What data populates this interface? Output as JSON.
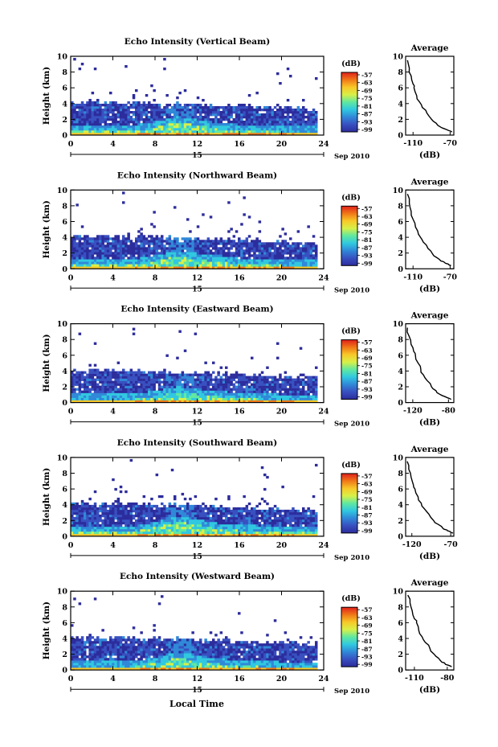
{
  "figure": {
    "xlabel": "Local Time",
    "date_label": "Sep 2010",
    "day_label": "15"
  },
  "colorbar": {
    "unit_label": "(dB)",
    "ticks": [
      "-57",
      "-63",
      "-69",
      "-75",
      "-81",
      "-87",
      "-93",
      "-99"
    ],
    "colors": [
      "#e0201c",
      "#f07818",
      "#f8c828",
      "#d8f048",
      "#60e8a0",
      "#30c8e0",
      "#3088d8",
      "#3850c0",
      "#2c2c9c"
    ]
  },
  "chart_data": [
    {
      "type": "heatmap",
      "title": "Echo Intensity (Vertical Beam)",
      "ylabel": "Height (km)",
      "xlim": [
        0,
        24
      ],
      "ylim": [
        0,
        10
      ],
      "xticks": [
        0,
        4,
        8,
        12,
        16,
        20,
        24
      ],
      "yticks": [
        0,
        2,
        4,
        6,
        8,
        10
      ],
      "color_unit": "dB",
      "color_range": [
        -99,
        -57
      ],
      "layer_top_km": {
        "time_h": [
          0,
          4,
          8,
          12,
          16,
          20,
          23.5
        ],
        "height_km": [
          4.3,
          4.3,
          4.2,
          4.0,
          3.8,
          3.6,
          3.5
        ]
      },
      "strong_layer": {
        "time_h": [
          6,
          8,
          10,
          12,
          14,
          16,
          18,
          20
        ],
        "height_km": [
          0.7,
          1.2,
          1.8,
          1.4,
          1.0,
          0.8,
          0.7,
          0.6
        ]
      }
    },
    {
      "type": "heatmap",
      "title": "Echo Intensity (Northward Beam)",
      "ylabel": "Height (km)",
      "xlim": [
        0,
        24
      ],
      "ylim": [
        0,
        10
      ],
      "xticks": [
        0,
        4,
        8,
        12,
        16,
        20,
        24
      ],
      "yticks": [
        0,
        2,
        4,
        6,
        8,
        10
      ],
      "color_unit": "dB",
      "color_range": [
        -99,
        -57
      ],
      "layer_top_km": {
        "time_h": [
          0,
          4,
          8,
          12,
          16,
          20,
          23.5
        ],
        "height_km": [
          4.4,
          4.3,
          4.2,
          4.0,
          3.8,
          3.6,
          3.4
        ]
      },
      "strong_layer": {
        "time_h": [
          6,
          8,
          10,
          12,
          14,
          16,
          18,
          20
        ],
        "height_km": [
          0.7,
          1.2,
          1.8,
          1.4,
          1.0,
          0.8,
          0.7,
          0.6
        ]
      }
    },
    {
      "type": "heatmap",
      "title": "Echo Intensity (Eastward Beam)",
      "ylabel": "Height (km)",
      "xlim": [
        0,
        24
      ],
      "ylim": [
        0,
        10
      ],
      "xticks": [
        0,
        4,
        8,
        12,
        16,
        20,
        24
      ],
      "yticks": [
        0,
        2,
        4,
        6,
        8,
        10
      ],
      "color_unit": "dB",
      "color_range": [
        -99,
        -57
      ],
      "layer_top_km": {
        "time_h": [
          0,
          4,
          8,
          12,
          16,
          20,
          23.5
        ],
        "height_km": [
          4.3,
          4.2,
          4.1,
          3.9,
          3.7,
          3.5,
          3.5
        ]
      },
      "strong_layer": {
        "time_h": [
          6,
          8,
          10,
          12,
          14,
          16,
          18,
          20
        ],
        "height_km": [
          0.6,
          1.0,
          1.5,
          1.2,
          0.9,
          0.7,
          0.6,
          0.5
        ]
      }
    },
    {
      "type": "heatmap",
      "title": "Echo Intensity (Southward Beam)",
      "ylabel": "Height (km)",
      "xlim": [
        0,
        24
      ],
      "ylim": [
        0,
        10
      ],
      "xticks": [
        0,
        4,
        8,
        12,
        16,
        20,
        24
      ],
      "yticks": [
        0,
        2,
        4,
        6,
        8,
        10
      ],
      "color_unit": "dB",
      "color_range": [
        -99,
        -57
      ],
      "layer_top_km": {
        "time_h": [
          0,
          4,
          8,
          12,
          16,
          20,
          23.5
        ],
        "height_km": [
          4.3,
          4.3,
          4.2,
          4.0,
          3.8,
          3.6,
          3.5
        ]
      },
      "strong_layer": {
        "time_h": [
          6,
          8,
          10,
          12,
          14,
          16,
          18,
          20
        ],
        "height_km": [
          0.8,
          1.3,
          2.0,
          1.6,
          1.1,
          0.9,
          0.8,
          0.7
        ]
      }
    },
    {
      "type": "heatmap",
      "title": "Echo Intensity (Westward Beam)",
      "ylabel": "Height (km)",
      "xlim": [
        0,
        24
      ],
      "ylim": [
        0,
        10
      ],
      "xticks": [
        0,
        4,
        8,
        12,
        16,
        20,
        24
      ],
      "yticks": [
        0,
        2,
        4,
        6,
        8,
        10
      ],
      "color_unit": "dB",
      "color_range": [
        -99,
        -57
      ],
      "layer_top_km": {
        "time_h": [
          0,
          4,
          8,
          12,
          16,
          20,
          23.5
        ],
        "height_km": [
          4.3,
          4.3,
          4.2,
          4.0,
          3.8,
          3.6,
          3.5
        ]
      },
      "strong_layer": {
        "time_h": [
          6,
          8,
          10,
          12,
          14,
          16,
          18,
          20
        ],
        "height_km": [
          0.6,
          1.1,
          1.7,
          1.3,
          0.9,
          0.7,
          0.6,
          0.5
        ]
      }
    },
    {
      "type": "line",
      "title": "Average",
      "xlabel": "(dB)",
      "ylabel": "",
      "xlim": [
        -118,
        -66
      ],
      "ylim": [
        0,
        10
      ],
      "xticks": [
        -110,
        -70
      ],
      "yticks": [
        0,
        2,
        4,
        6,
        8,
        10
      ],
      "series": [
        {
          "x": [
            -116,
            -114,
            -112,
            -110,
            -109,
            -106,
            -103,
            -100,
            -95,
            -90,
            -85,
            -80,
            -76,
            -72,
            -68
          ],
          "y": [
            9.5,
            8.5,
            7.5,
            6.5,
            6.0,
            5.0,
            4.2,
            3.5,
            2.8,
            2.0,
            1.5,
            1.0,
            0.8,
            0.6,
            0.4
          ]
        }
      ]
    },
    {
      "type": "line",
      "title": "Average",
      "xlabel": "(dB)",
      "ylabel": "",
      "xlim": [
        -118,
        -66
      ],
      "ylim": [
        0,
        10
      ],
      "xticks": [
        -110,
        -70
      ],
      "yticks": [
        0,
        2,
        4,
        6,
        8,
        10
      ],
      "series": [
        {
          "x": [
            -116,
            -114,
            -112,
            -110,
            -108,
            -105,
            -102,
            -99,
            -94,
            -89,
            -84,
            -80,
            -76,
            -72,
            -69
          ],
          "y": [
            9.5,
            8.3,
            7.3,
            6.3,
            5.8,
            4.8,
            4.0,
            3.4,
            2.6,
            1.9,
            1.4,
            1.0,
            0.8,
            0.6,
            0.4
          ]
        }
      ]
    },
    {
      "type": "line",
      "title": "Average",
      "xlabel": "(dB)",
      "ylabel": "",
      "xlim": [
        -128,
        -74
      ],
      "ylim": [
        0,
        10
      ],
      "xticks": [
        -120,
        -80
      ],
      "yticks": [
        0,
        2,
        4,
        6,
        8,
        10
      ],
      "series": [
        {
          "x": [
            -126,
            -124,
            -122,
            -119,
            -117,
            -114,
            -111,
            -108,
            -104,
            -99,
            -94,
            -89,
            -85,
            -81,
            -77
          ],
          "y": [
            9.5,
            8.4,
            7.4,
            6.5,
            6.0,
            5.0,
            4.2,
            3.5,
            2.8,
            2.0,
            1.5,
            1.0,
            0.8,
            0.6,
            0.4
          ]
        }
      ]
    },
    {
      "type": "line",
      "title": "Average",
      "xlabel": "(dB)",
      "ylabel": "",
      "xlim": [
        -128,
        -66
      ],
      "ylim": [
        0,
        10
      ],
      "xticks": [
        -120,
        -70
      ],
      "yticks": [
        0,
        2,
        4,
        6,
        8,
        10
      ],
      "series": [
        {
          "x": [
            -126,
            -124,
            -121,
            -118,
            -116,
            -112,
            -108,
            -104,
            -98,
            -92,
            -86,
            -80,
            -75,
            -71,
            -67
          ],
          "y": [
            9.5,
            8.5,
            7.5,
            6.5,
            6.0,
            5.0,
            4.2,
            3.5,
            2.8,
            2.0,
            1.5,
            1.0,
            0.8,
            0.6,
            0.4
          ]
        }
      ]
    },
    {
      "type": "line",
      "title": "Average",
      "xlabel": "(dB)",
      "ylabel": "",
      "xlim": [
        -118,
        -74
      ],
      "ylim": [
        0,
        10
      ],
      "xticks": [
        -110,
        -80
      ],
      "yticks": [
        0,
        2,
        4,
        6,
        8,
        10
      ],
      "series": [
        {
          "x": [
            -116,
            -114,
            -112,
            -110,
            -108,
            -106,
            -103,
            -100,
            -96,
            -92,
            -88,
            -85,
            -82,
            -79,
            -76
          ],
          "y": [
            9.5,
            8.5,
            7.5,
            6.5,
            6.0,
            5.0,
            4.2,
            3.5,
            2.8,
            2.0,
            1.5,
            1.0,
            0.8,
            0.6,
            0.4
          ]
        }
      ]
    }
  ]
}
